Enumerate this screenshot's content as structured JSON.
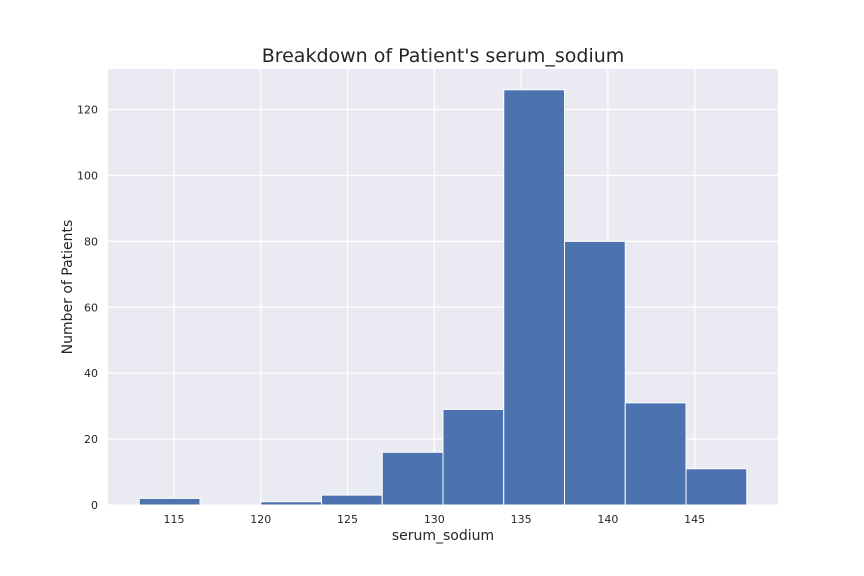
{
  "chart_data": {
    "type": "bar",
    "subtype": "histogram",
    "title": "Breakdown of Patient's serum_sodium",
    "xlabel": "serum_sodium",
    "ylabel": "Number of Patients",
    "bin_edges": [
      113,
      116.5,
      120,
      123.5,
      127,
      130.5,
      134,
      137.5,
      141,
      144.5,
      148
    ],
    "values": [
      2,
      0,
      1,
      3,
      16,
      29,
      126,
      80,
      31,
      11
    ],
    "xlim": [
      111.2,
      149.8
    ],
    "ylim": [
      0,
      132.3
    ],
    "xticks": [
      115,
      120,
      125,
      130,
      135,
      140,
      145
    ],
    "yticks": [
      0,
      20,
      40,
      60,
      80,
      100,
      120
    ],
    "grid": true,
    "colors": {
      "bar": "#4c72b0",
      "plot_background": "#eaeaf2",
      "grid": "#ffffff",
      "text": "#262626"
    }
  }
}
